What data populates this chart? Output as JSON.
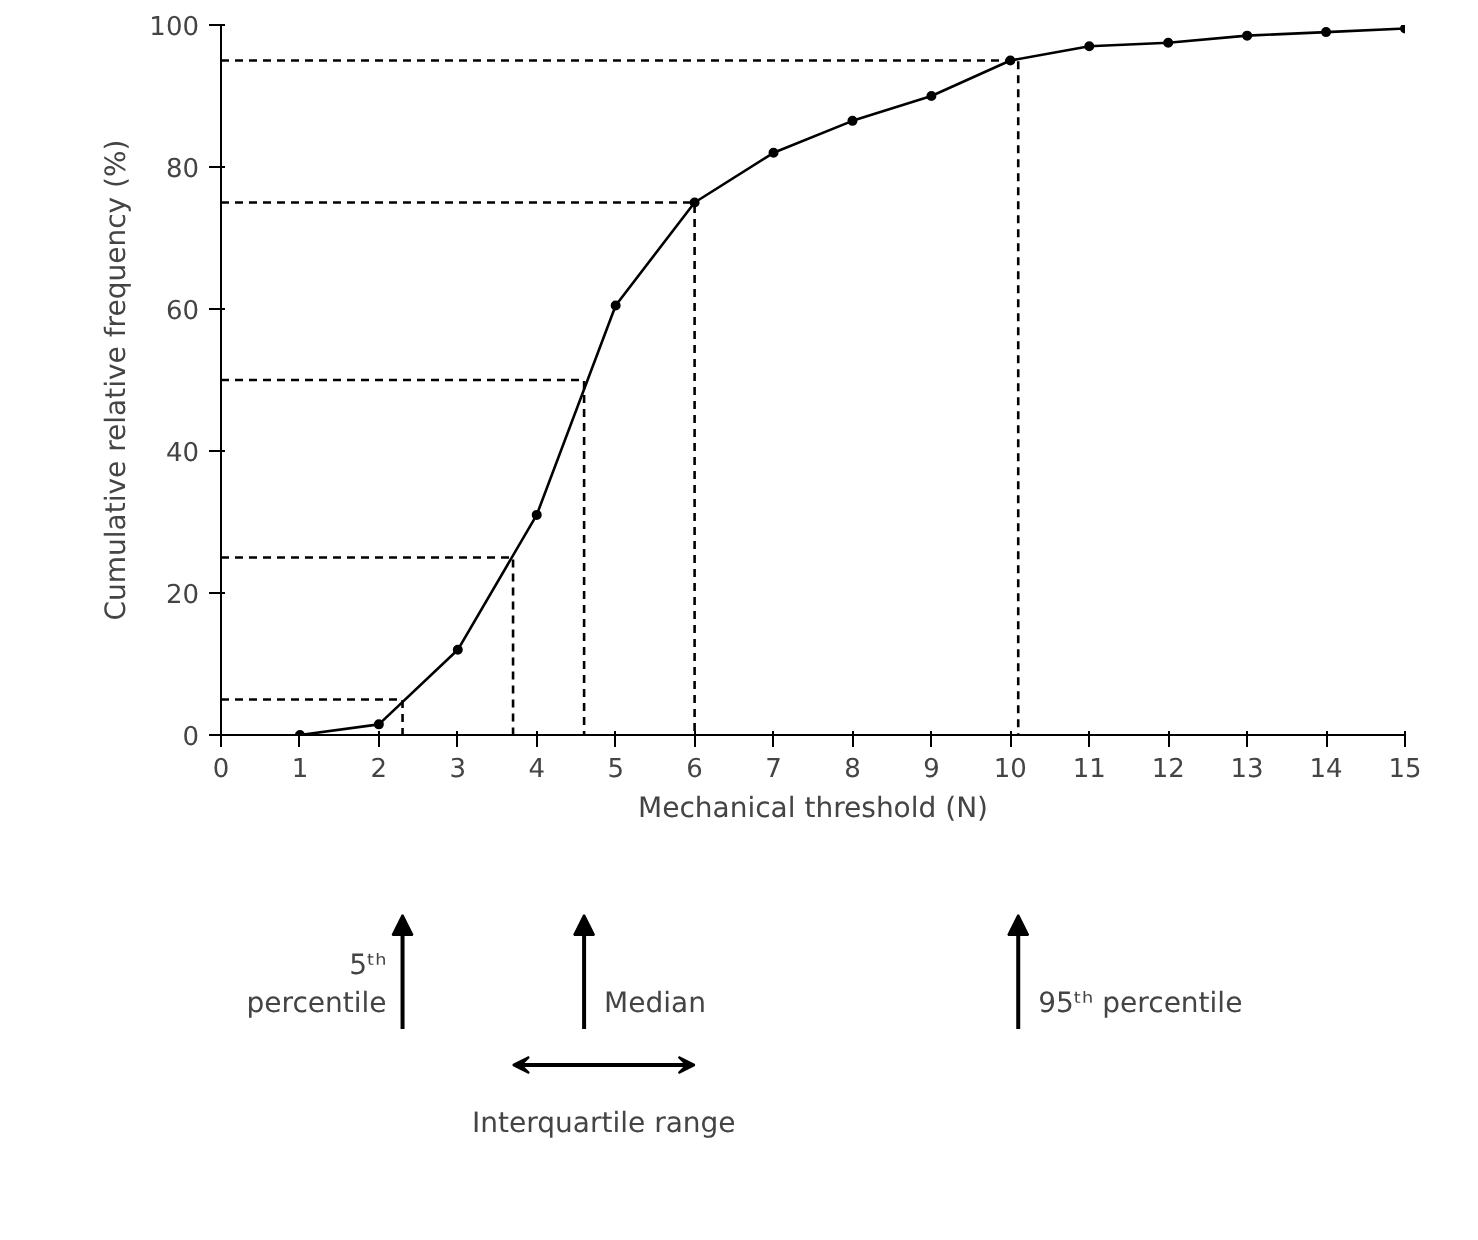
{
  "chart_data": {
    "type": "line",
    "xlabel": "Mechanical threshold (N)",
    "ylabel": "Cumulative relative frequency (%)",
    "xlim": [
      0,
      15
    ],
    "xticks": [
      0,
      1,
      2,
      3,
      4,
      5,
      6,
      7,
      8,
      9,
      10,
      11,
      12,
      13,
      14,
      15
    ],
    "ylim": [
      0,
      100
    ],
    "yticks": [
      0,
      20,
      40,
      60,
      80,
      100
    ],
    "grid": false,
    "marker": "circle",
    "line_style": "solid",
    "series": [
      {
        "color": "#000000",
        "x": [
          1,
          2,
          3,
          4,
          5,
          6,
          7,
          8,
          9,
          10,
          11,
          12,
          13,
          14,
          15
        ],
        "values": [
          0,
          1.5,
          12,
          31,
          60.5,
          75,
          82,
          86.5,
          90,
          95,
          97,
          97.5,
          98.5,
          99,
          99.5
        ]
      },
      {
        "color": "#000000",
        "marker": "none",
        "line_style": "dashed",
        "x": [
          0,
          2.3,
          2.3
        ],
        "values": [
          5,
          5,
          0
        ]
      },
      {
        "color": "#000000",
        "marker": "none",
        "line_style": "dashed",
        "x": [
          0,
          3.7,
          3.7
        ],
        "values": [
          25,
          25,
          0
        ]
      },
      {
        "color": "#000000",
        "marker": "none",
        "line_style": "dashed",
        "x": [
          0,
          4.6,
          4.6
        ],
        "values": [
          50,
          50,
          0
        ]
      },
      {
        "color": "#000000",
        "marker": "none",
        "line_style": "dashed",
        "x": [
          0,
          6,
          6
        ],
        "values": [
          75,
          75,
          0
        ]
      },
      {
        "color": "#000000",
        "marker": "none",
        "line_style": "dashed",
        "x": [
          0,
          10.1,
          10.1
        ],
        "values": [
          95,
          95,
          0
        ]
      }
    ],
    "annotations": [
      "5ᵗʰ\npercentile",
      "Median",
      "95ᵗʰ percentile",
      "Interquartile range"
    ]
  }
}
